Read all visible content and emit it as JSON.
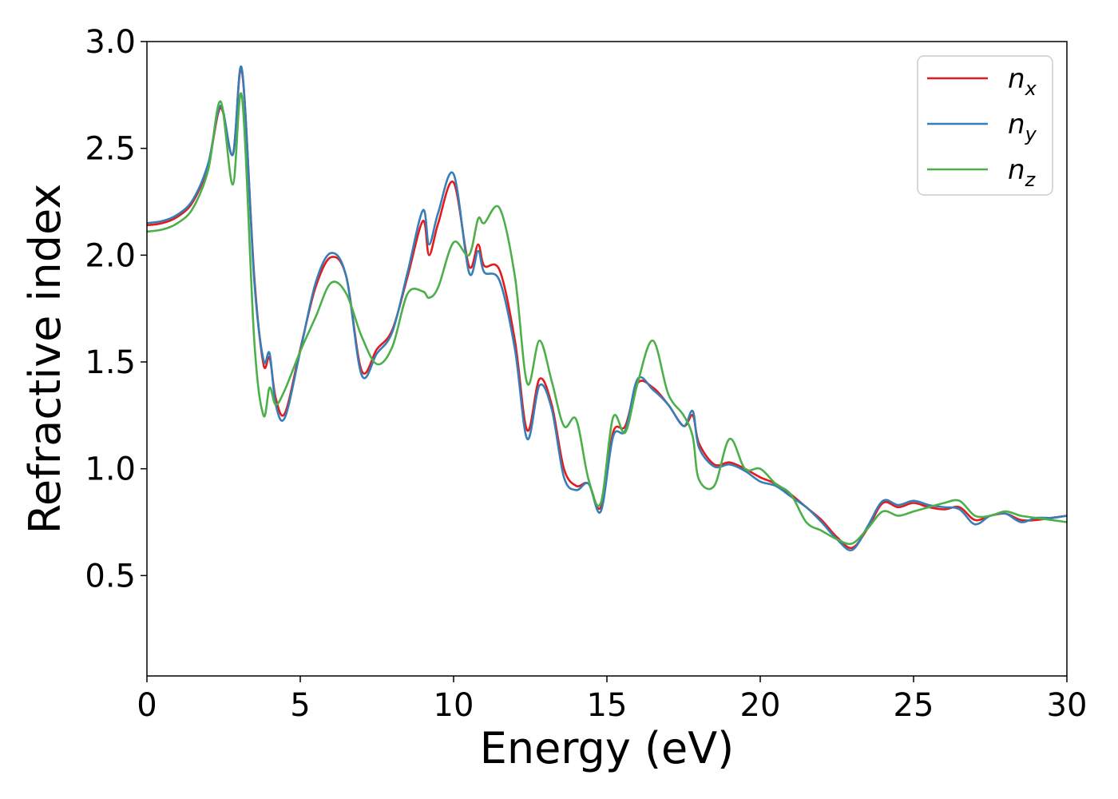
{
  "chart_data": {
    "type": "line",
    "xlabel": "Energy (eV)",
    "ylabel": "Refractive index",
    "xlim": [
      0,
      30
    ],
    "ylim": [
      0.03,
      3.0
    ],
    "xticks": [
      0,
      5,
      10,
      15,
      20,
      25,
      30
    ],
    "yticks": [
      0.5,
      1.0,
      1.5,
      2.0,
      2.5,
      3.0
    ],
    "xtick_labels": [
      "0",
      "5",
      "10",
      "15",
      "20",
      "25",
      "30"
    ],
    "ytick_labels": [
      "0.5",
      "1.0",
      "1.5",
      "2.0",
      "2.5",
      "3.0"
    ],
    "grid": false,
    "legend_position": "top-right",
    "series": [
      {
        "name": "n_x",
        "base": "n",
        "sub": "x",
        "color": "#e41a1c",
        "x": [
          0,
          0.5,
          1,
          1.5,
          2,
          2.4,
          2.8,
          3.1,
          3.5,
          3.8,
          4.0,
          4.2,
          4.5,
          5,
          5.5,
          6,
          6.5,
          7,
          7.5,
          8,
          8.5,
          9,
          9.2,
          9.5,
          10,
          10.5,
          10.8,
          11,
          11.5,
          12,
          12.4,
          12.8,
          13.2,
          13.6,
          14,
          14.4,
          14.8,
          15.2,
          15.6,
          16,
          16.5,
          17,
          17.5,
          17.8,
          18,
          18.5,
          19,
          19.5,
          20,
          20.5,
          21,
          21.5,
          22,
          22.5,
          23,
          23.5,
          24,
          24.5,
          25,
          25.5,
          26,
          26.5,
          27,
          27.5,
          28,
          28.5,
          29,
          29.5,
          30
        ],
        "y": [
          2.14,
          2.15,
          2.18,
          2.25,
          2.42,
          2.69,
          2.47,
          2.86,
          1.9,
          1.49,
          1.52,
          1.33,
          1.26,
          1.56,
          1.85,
          1.99,
          1.9,
          1.46,
          1.56,
          1.65,
          1.9,
          2.16,
          2.0,
          2.15,
          2.34,
          1.95,
          2.05,
          1.95,
          1.93,
          1.6,
          1.18,
          1.42,
          1.3,
          1.0,
          0.92,
          0.93,
          0.82,
          1.17,
          1.2,
          1.4,
          1.38,
          1.3,
          1.2,
          1.25,
          1.12,
          1.02,
          1.03,
          1.0,
          0.96,
          0.93,
          0.88,
          0.82,
          0.76,
          0.68,
          0.63,
          0.72,
          0.84,
          0.82,
          0.84,
          0.82,
          0.81,
          0.82,
          0.76,
          0.78,
          0.79,
          0.76,
          0.76,
          0.77,
          0.78
        ]
      },
      {
        "name": "n_y",
        "base": "n",
        "sub": "y",
        "color": "#377eb8",
        "x": [
          0,
          0.5,
          1,
          1.5,
          2,
          2.4,
          2.8,
          3.1,
          3.5,
          3.8,
          4.0,
          4.2,
          4.5,
          5,
          5.5,
          6,
          6.5,
          7,
          7.5,
          8,
          8.5,
          9,
          9.2,
          9.5,
          10,
          10.5,
          10.8,
          11,
          11.5,
          12,
          12.4,
          12.8,
          13.2,
          13.6,
          14,
          14.4,
          14.8,
          15.2,
          15.6,
          16,
          16.5,
          17,
          17.5,
          17.8,
          18,
          18.5,
          19,
          19.5,
          20,
          20.5,
          21,
          21.5,
          22,
          22.5,
          23,
          23.5,
          24,
          24.5,
          25,
          25.5,
          26,
          26.5,
          27,
          27.5,
          28,
          28.5,
          29,
          29.5,
          30
        ],
        "y": [
          2.15,
          2.16,
          2.19,
          2.26,
          2.43,
          2.7,
          2.47,
          2.87,
          1.88,
          1.51,
          1.54,
          1.3,
          1.24,
          1.55,
          1.87,
          2.01,
          1.9,
          1.44,
          1.54,
          1.64,
          1.92,
          2.21,
          2.05,
          2.2,
          2.38,
          1.92,
          2.02,
          1.92,
          1.88,
          1.56,
          1.14,
          1.39,
          1.28,
          0.96,
          0.9,
          0.93,
          0.8,
          1.15,
          1.18,
          1.42,
          1.37,
          1.3,
          1.2,
          1.27,
          1.1,
          1.01,
          1.02,
          0.99,
          0.94,
          0.92,
          0.87,
          0.82,
          0.75,
          0.67,
          0.62,
          0.73,
          0.85,
          0.83,
          0.85,
          0.83,
          0.82,
          0.81,
          0.74,
          0.78,
          0.79,
          0.75,
          0.77,
          0.77,
          0.78
        ]
      },
      {
        "name": "n_z",
        "base": "n",
        "sub": "z",
        "color": "#4daf4a",
        "x": [
          0,
          0.5,
          1,
          1.5,
          2,
          2.4,
          2.8,
          3.1,
          3.5,
          3.8,
          4.0,
          4.2,
          4.5,
          5,
          5.5,
          6,
          6.5,
          7,
          7.5,
          8,
          8.5,
          9,
          9.2,
          9.5,
          10,
          10.5,
          10.8,
          11,
          11.5,
          12,
          12.4,
          12.8,
          13.2,
          13.6,
          14,
          14.4,
          14.8,
          15.2,
          15.6,
          16,
          16.5,
          17,
          17.5,
          17.8,
          18,
          18.5,
          19,
          19.5,
          20,
          20.5,
          21,
          21.5,
          22,
          22.5,
          23,
          23.5,
          24,
          24.5,
          25,
          25.5,
          26,
          26.5,
          27,
          27.5,
          28,
          28.5,
          29,
          29.5,
          30
        ],
        "y": [
          2.11,
          2.12,
          2.15,
          2.22,
          2.4,
          2.72,
          2.33,
          2.74,
          1.6,
          1.25,
          1.38,
          1.3,
          1.37,
          1.55,
          1.71,
          1.87,
          1.82,
          1.62,
          1.49,
          1.57,
          1.82,
          1.83,
          1.8,
          1.85,
          2.06,
          2.0,
          2.17,
          2.15,
          2.22,
          1.9,
          1.4,
          1.6,
          1.41,
          1.2,
          1.23,
          0.95,
          0.84,
          1.24,
          1.17,
          1.4,
          1.6,
          1.35,
          1.25,
          1.15,
          0.95,
          0.92,
          1.14,
          1.0,
          1.0,
          0.93,
          0.88,
          0.75,
          0.71,
          0.67,
          0.65,
          0.72,
          0.8,
          0.78,
          0.8,
          0.82,
          0.84,
          0.85,
          0.78,
          0.78,
          0.8,
          0.78,
          0.77,
          0.76,
          0.75
        ]
      }
    ]
  }
}
